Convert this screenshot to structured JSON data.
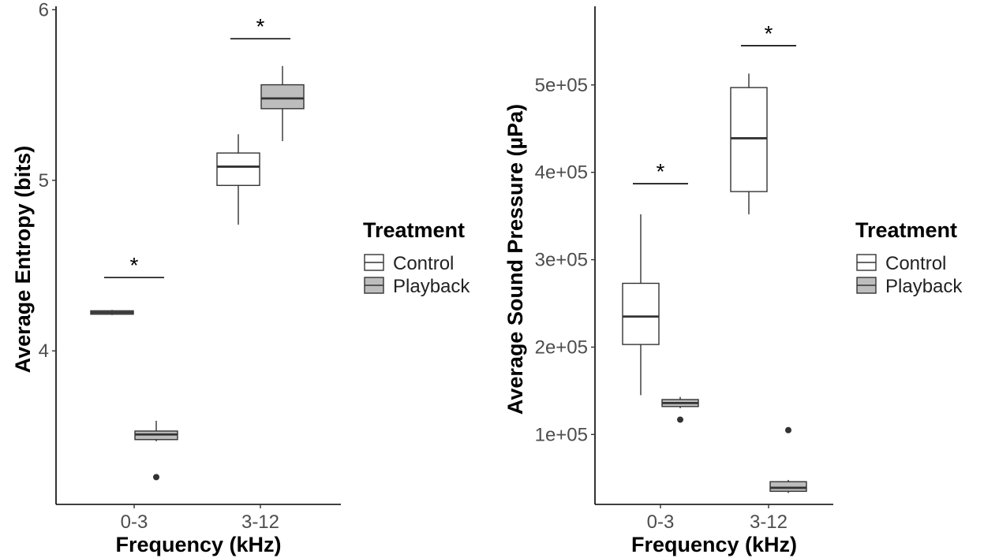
{
  "chart_data": [
    {
      "type": "box",
      "xlabel": "Frequency (kHz)",
      "ylabel": "Average Entropy (bits)",
      "categories": [
        "0-3",
        "3-12"
      ],
      "ylim": [
        3.1,
        6.02
      ],
      "yticks": [
        4,
        5,
        6
      ],
      "ytick_labels": [
        "4",
        "5",
        "6"
      ],
      "series": [
        {
          "name": "Control",
          "color": "#ffffff",
          "boxes": [
            {
              "category": "0-3",
              "whisker_low": 4.21,
              "q1": 4.215,
              "median": 4.225,
              "q3": 4.235,
              "whisker_high": 4.24,
              "outliers": []
            },
            {
              "category": "3-12",
              "whisker_low": 4.74,
              "q1": 4.97,
              "median": 5.08,
              "q3": 5.16,
              "whisker_high": 5.27,
              "outliers": []
            }
          ]
        },
        {
          "name": "Playback",
          "color": "#bdbdbd",
          "boxes": [
            {
              "category": "0-3",
              "whisker_low": 3.47,
              "q1": 3.48,
              "median": 3.51,
              "q3": 3.53,
              "whisker_high": 3.59,
              "outliers": [
                3.26
              ]
            },
            {
              "category": "3-12",
              "whisker_low": 5.23,
              "q1": 5.42,
              "median": 5.48,
              "q3": 5.56,
              "whisker_high": 5.67,
              "outliers": []
            }
          ]
        }
      ],
      "annotations": [
        {
          "category": "0-3",
          "text": "*",
          "y": 4.43
        },
        {
          "category": "3-12",
          "text": "*",
          "y": 5.83
        }
      ],
      "legend": {
        "title": "Treatment",
        "items": [
          "Control",
          "Playback"
        ],
        "placement": "right"
      },
      "grid": false
    },
    {
      "type": "box",
      "xlabel": "Frequency (kHz)",
      "ylabel": "Average Sound Pressure (µPa)",
      "categories": [
        "0-3",
        "3-12"
      ],
      "ylim": [
        20000,
        590000
      ],
      "yticks": [
        100000,
        200000,
        300000,
        400000,
        500000
      ],
      "ytick_labels": [
        "1e+05",
        "2e+05",
        "3e+05",
        "4e+05",
        "5e+05"
      ],
      "series": [
        {
          "name": "Control",
          "color": "#ffffff",
          "boxes": [
            {
              "category": "0-3",
              "whisker_low": 145000,
              "q1": 203000,
              "median": 235000,
              "q3": 273000,
              "whisker_high": 352000,
              "outliers": []
            },
            {
              "category": "3-12",
              "whisker_low": 352000,
              "q1": 378000,
              "median": 439000,
              "q3": 497000,
              "whisker_high": 513000,
              "outliers": []
            }
          ]
        },
        {
          "name": "Playback",
          "color": "#bdbdbd",
          "boxes": [
            {
              "category": "0-3",
              "whisker_low": 130000,
              "q1": 132000,
              "median": 136000,
              "q3": 140000,
              "whisker_high": 143000,
              "outliers": [
                117000
              ]
            },
            {
              "category": "3-12",
              "whisker_low": 33000,
              "q1": 35000,
              "median": 39000,
              "q3": 46000,
              "whisker_high": 48000,
              "outliers": [
                105000
              ]
            }
          ]
        }
      ],
      "annotations": [
        {
          "category": "0-3",
          "text": "*",
          "y": 387000
        },
        {
          "category": "3-12",
          "text": "*",
          "y": 545000
        }
      ],
      "legend": {
        "title": "Treatment",
        "items": [
          "Control",
          "Playback"
        ],
        "placement": "right"
      },
      "grid": false
    }
  ]
}
